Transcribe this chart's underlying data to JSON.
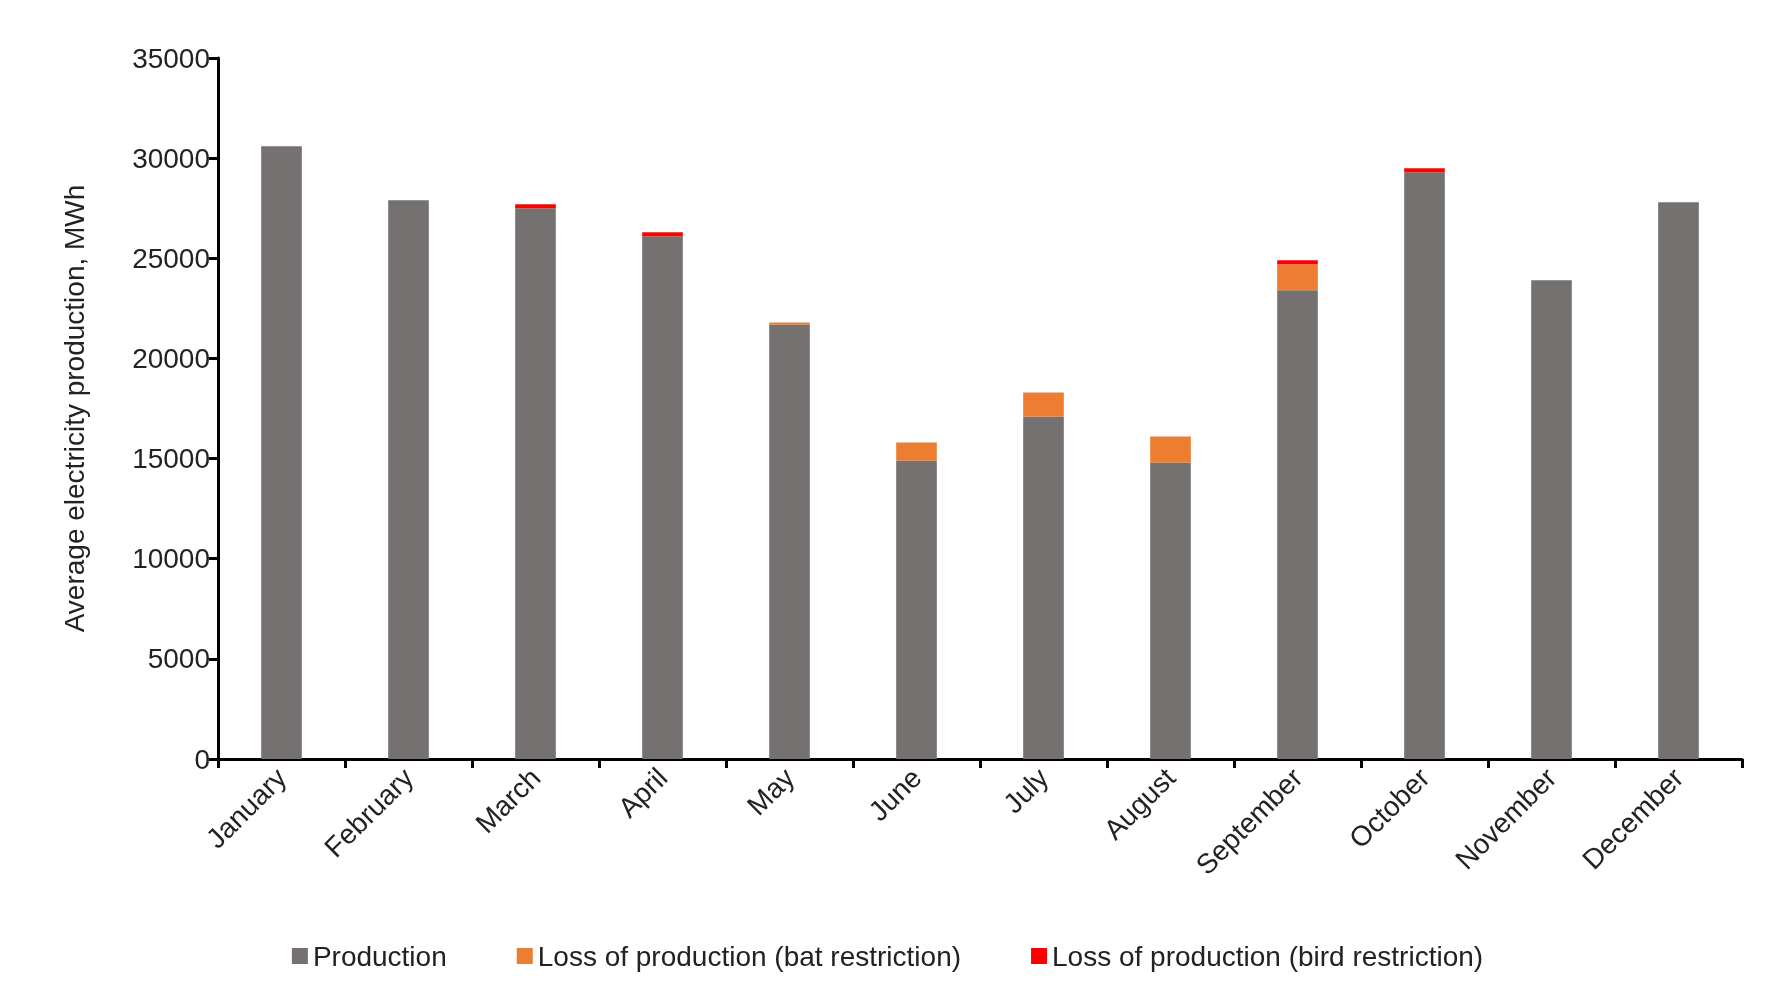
{
  "chart_data": {
    "type": "bar",
    "stacked": true,
    "ylabel": "Average electricity production, MWh",
    "categories": [
      "January",
      "February",
      "March",
      "April",
      "May",
      "June",
      "July",
      "August",
      "September",
      "October",
      "November",
      "December"
    ],
    "series": [
      {
        "name": "Production",
        "color": "#757171",
        "values": [
          30600,
          27900,
          27500,
          26100,
          21700,
          14900,
          17100,
          14800,
          23400,
          29300,
          23900,
          27800
        ]
      },
      {
        "name": "Loss of production (bat restriction)",
        "color": "#ed7d31",
        "values": [
          0,
          0,
          0,
          0,
          100,
          900,
          1200,
          1300,
          1300,
          0,
          0,
          0
        ]
      },
      {
        "name": "Loss of production (bird restriction)",
        "color": "#ff0000",
        "values": [
          0,
          0,
          200,
          200,
          0,
          0,
          0,
          0,
          200,
          200,
          0,
          0
        ]
      }
    ],
    "ylim": [
      0,
      35000
    ],
    "yticks": [
      0,
      5000,
      10000,
      15000,
      20000,
      25000,
      30000,
      35000
    ],
    "grid": false,
    "legend": "bottom"
  }
}
